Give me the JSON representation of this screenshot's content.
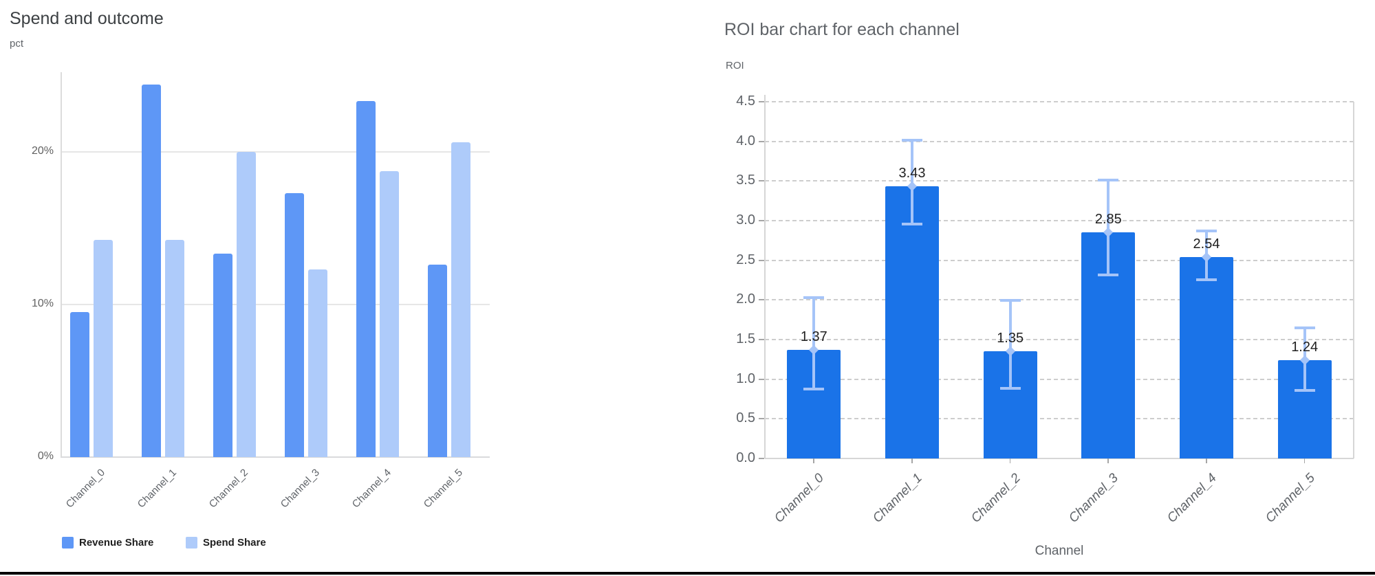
{
  "page": {
    "background": "#ffffff",
    "bottom_rule_color": "#000000"
  },
  "chart_data": [
    {
      "type": "bar",
      "title": "Spend and outcome",
      "ylabel": "pct",
      "xlabel": "",
      "categories": [
        "Channel_0",
        "Channel_1",
        "Channel_2",
        "Channel_3",
        "Channel_4",
        "Channel_5"
      ],
      "series": [
        {
          "name": "Revenue Share",
          "color": "#5e97f6",
          "values": [
            9.5,
            24.4,
            13.3,
            17.3,
            23.3,
            12.6
          ]
        },
        {
          "name": "Spend Share",
          "color": "#aecbfa",
          "values": [
            14.2,
            14.2,
            20.0,
            12.3,
            18.7,
            20.6
          ]
        }
      ],
      "ylim": [
        0,
        25.2
      ],
      "ytick_values": [
        0,
        10,
        20
      ],
      "ytick_labels": [
        "0%",
        "10%",
        "20%"
      ],
      "grid": "horizontal-solid",
      "legend_position": "bottom-left"
    },
    {
      "type": "bar",
      "title": "ROI bar chart for each channel",
      "ylabel": "ROI",
      "xlabel": "Channel",
      "categories": [
        "Channel_0",
        "Channel_1",
        "Channel_2",
        "Channel_3",
        "Channel_4",
        "Channel_5"
      ],
      "values": [
        1.37,
        3.43,
        1.35,
        2.85,
        2.54,
        1.24
      ],
      "bar_labels": [
        "1.37",
        "3.43",
        "1.35",
        "2.85",
        "2.54",
        "1.24"
      ],
      "error_low": [
        0.87,
        2.95,
        0.88,
        2.31,
        2.25,
        0.85
      ],
      "error_high": [
        2.04,
        4.02,
        2.0,
        3.52,
        2.88,
        1.66
      ],
      "ylim": [
        0,
        4.5
      ],
      "ytick_values": [
        0,
        0.5,
        1.0,
        1.5,
        2.0,
        2.5,
        3.0,
        3.5,
        4.0,
        4.5
      ],
      "ytick_labels": [
        "0.0",
        "0.5",
        "1.0",
        "1.5",
        "2.0",
        "2.5",
        "3.0",
        "3.5",
        "4.0",
        "4.5"
      ],
      "bar_color": "#1a73e8",
      "error_color": "#a5c4f8",
      "grid": "horizontal-dashed",
      "legend_position": "none"
    }
  ]
}
